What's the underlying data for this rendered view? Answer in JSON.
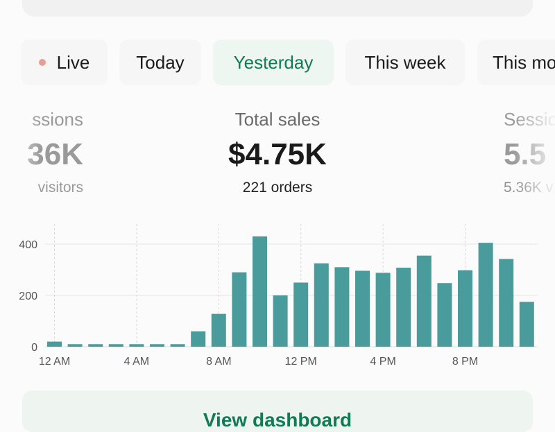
{
  "tabs": {
    "live": "Live",
    "today": "Today",
    "yesterday": "Yesterday",
    "this_week": "This week",
    "this_month": "This mo"
  },
  "metrics": {
    "left": {
      "label": "ssions",
      "value": "36K",
      "sub": "visitors"
    },
    "center": {
      "label": "Total sales",
      "value": "$4.75K",
      "sub": "221 orders"
    },
    "right": {
      "label": "Sessio",
      "value": "5.5",
      "sub": "5.36K v"
    }
  },
  "cta": {
    "label": "View dashboard"
  },
  "colors": {
    "accent": "#127a55",
    "bar": "#4a9c9c",
    "live_dot": "#e49e96"
  },
  "chart_data": {
    "type": "bar",
    "title": "",
    "xlabel": "",
    "ylabel": "",
    "ylim": [
      0,
      450
    ],
    "yticks": [
      0,
      200,
      400
    ],
    "ytick_labels": [
      "0",
      "200",
      "400"
    ],
    "categories": [
      "12 AM",
      "1 AM",
      "2 AM",
      "3 AM",
      "4 AM",
      "5 AM",
      "6 AM",
      "7 AM",
      "8 AM",
      "9 AM",
      "10 AM",
      "11 AM",
      "12 PM",
      "1 PM",
      "2 PM",
      "3 PM",
      "4 PM",
      "5 PM",
      "6 PM",
      "7 PM",
      "8 PM",
      "9 PM",
      "10 PM",
      "11 PM"
    ],
    "xtick_labels": [
      "12 AM",
      "4 AM",
      "8 AM",
      "12 PM",
      "4 PM",
      "8 PM"
    ],
    "xtick_indices": [
      0,
      4,
      8,
      12,
      16,
      20
    ],
    "values": [
      20,
      10,
      10,
      10,
      10,
      10,
      10,
      60,
      128,
      290,
      430,
      200,
      250,
      325,
      310,
      296,
      288,
      308,
      355,
      248,
      298,
      405,
      342,
      175
    ]
  }
}
